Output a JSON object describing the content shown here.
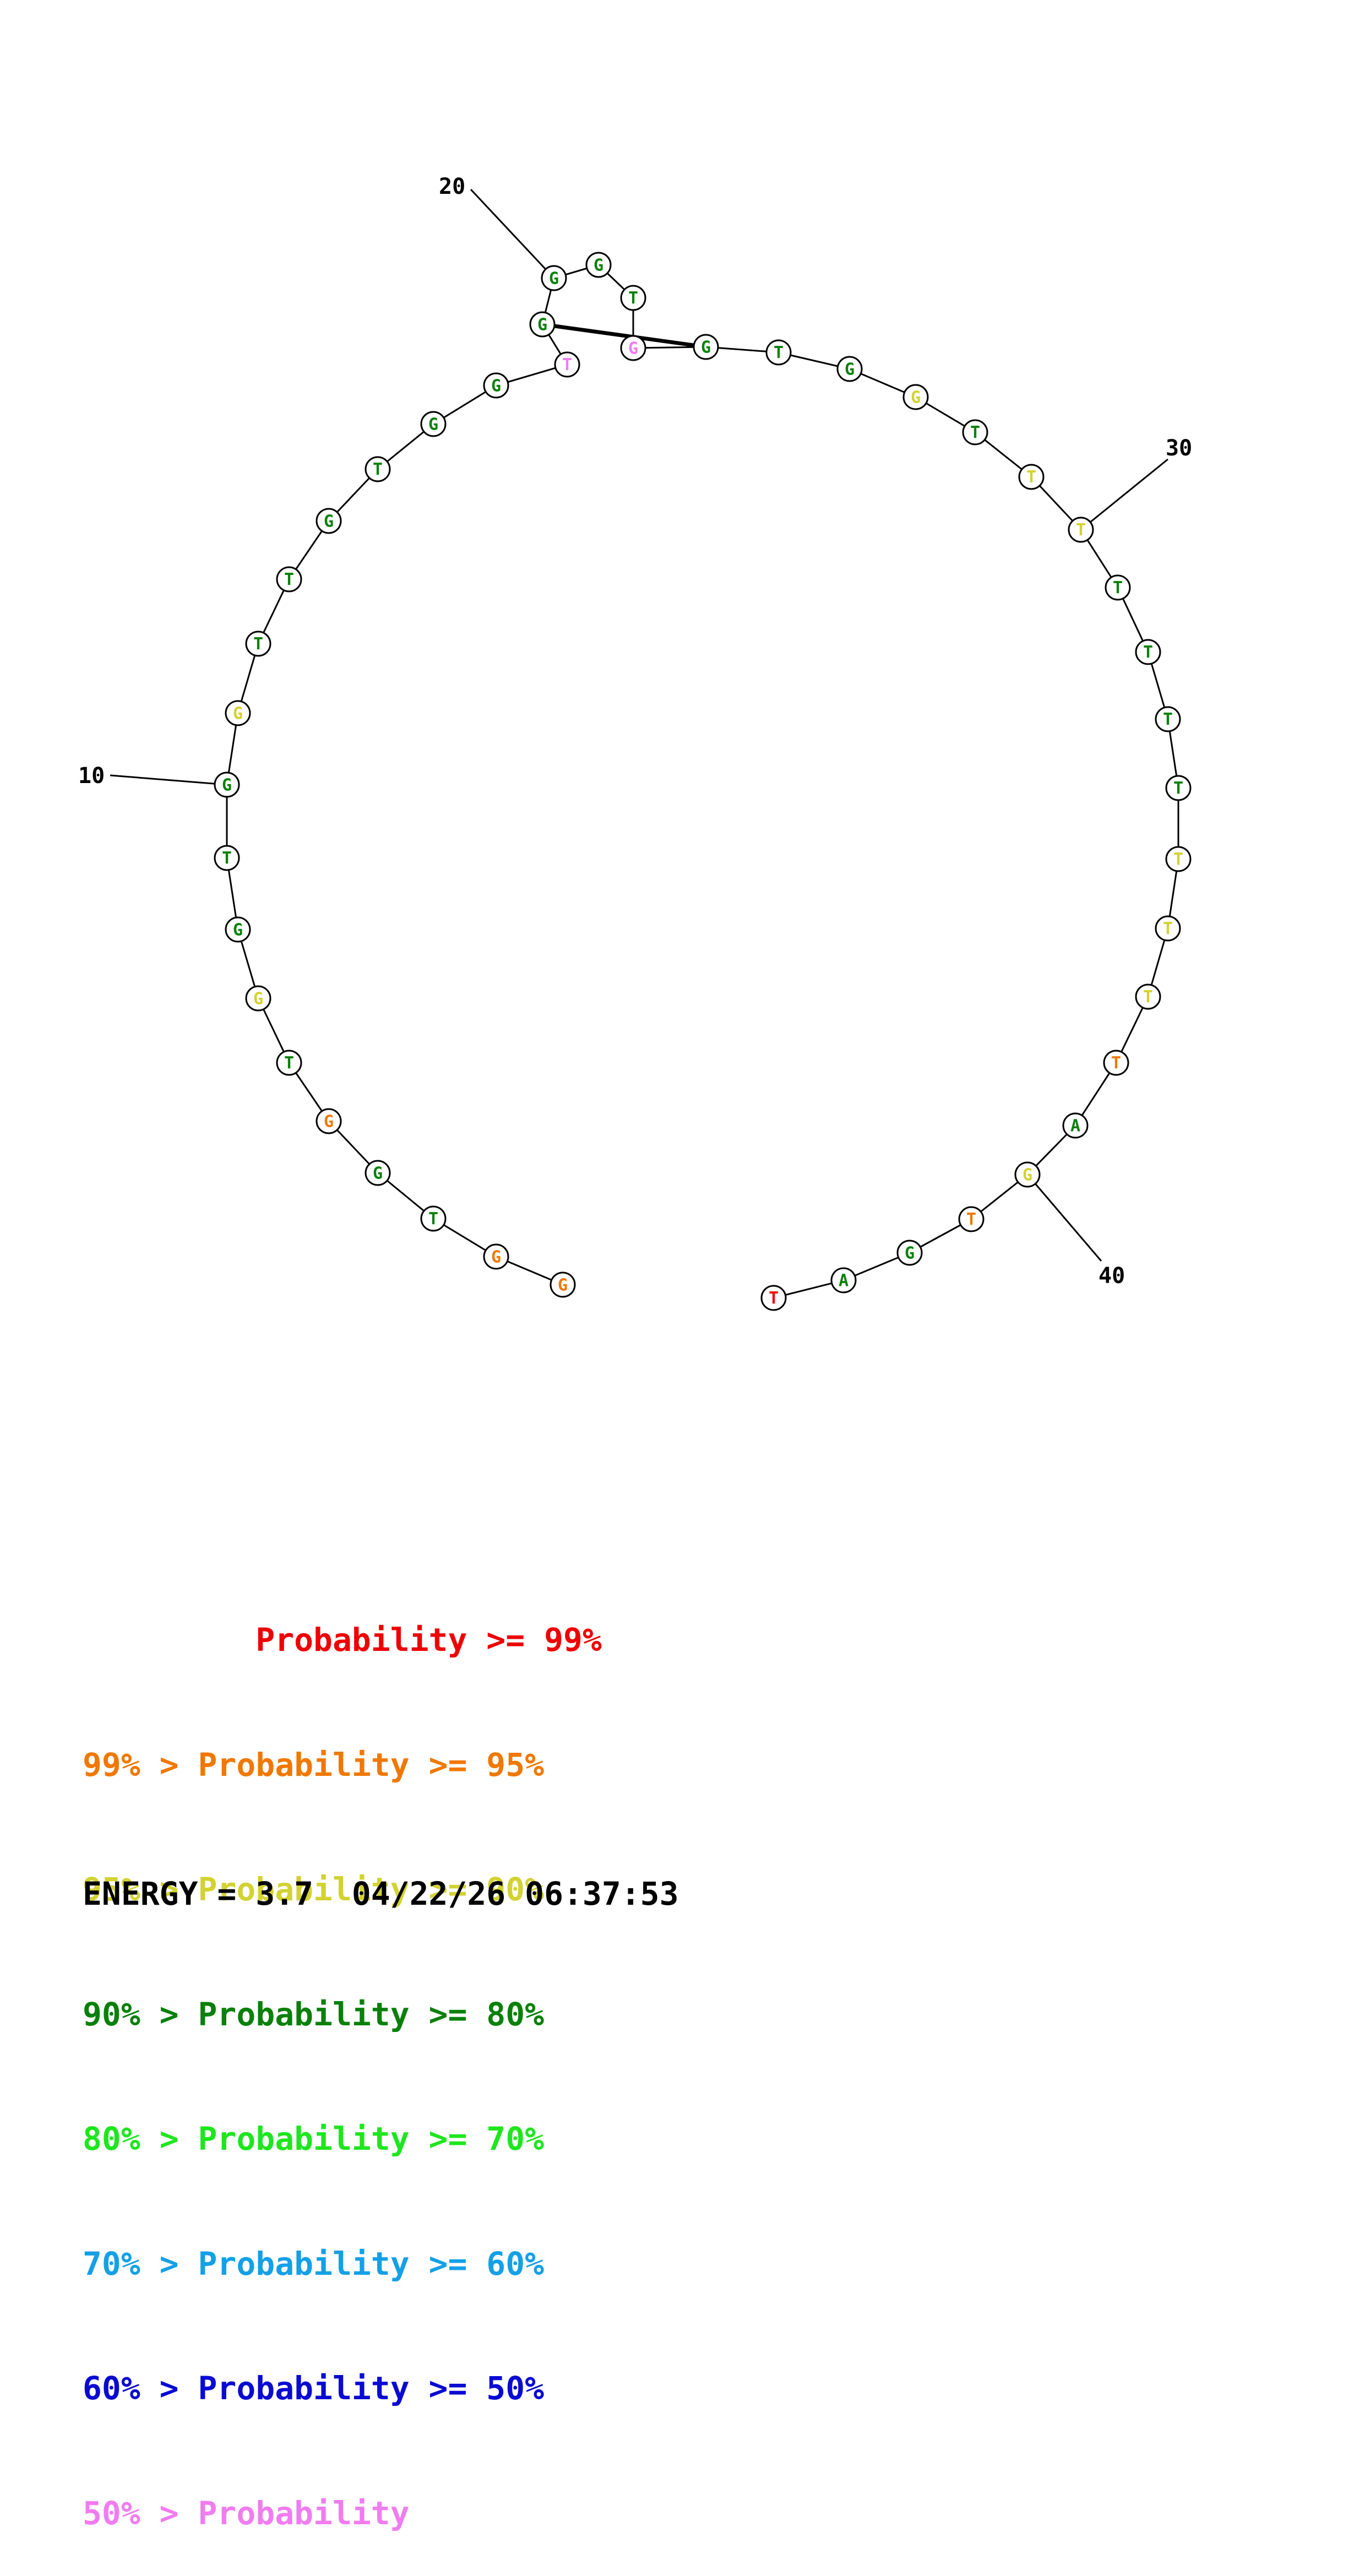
{
  "structure": {
    "sequence": [
      "G",
      "G",
      "T",
      "G",
      "G",
      "T",
      "G",
      "G",
      "T",
      "G",
      "G",
      "T",
      "T",
      "G",
      "T",
      "G",
      "G",
      "T",
      "G",
      "G",
      "G",
      "T",
      "G",
      "G",
      "T",
      "G",
      "G",
      "T",
      "T",
      "T",
      "T",
      "T",
      "T",
      "T",
      "T",
      "T",
      "T",
      "T",
      "A",
      "G",
      "T",
      "G",
      "A",
      "T"
    ],
    "colors": [
      "orange",
      "orange",
      "darkgreen",
      "darkgreen",
      "orange",
      "darkgreen",
      "yellow",
      "darkgreen",
      "darkgreen",
      "darkgreen",
      "yellow",
      "darkgreen",
      "darkgreen",
      "darkgreen",
      "darkgreen",
      "darkgreen",
      "darkgreen",
      "violet",
      "darkgreen",
      "darkgreen",
      "darkgreen",
      "darkgreen",
      "violet",
      "darkgreen",
      "darkgreen",
      "darkgreen",
      "yellow",
      "darkgreen",
      "yellow",
      "yellow",
      "darkgreen",
      "darkgreen",
      "darkgreen",
      "darkgreen",
      "yellow",
      "yellow",
      "yellow",
      "orange",
      "darkgreen",
      "yellow",
      "orange",
      "darkgreen",
      "darkgreen",
      "red"
    ],
    "pairs": [
      [
        18,
        23
      ]
    ],
    "position_labels": [
      {
        "index": 10,
        "text": "10"
      },
      {
        "index": 20,
        "text": "20"
      },
      {
        "index": 30,
        "text": "30"
      },
      {
        "index": 40,
        "text": "40"
      }
    ]
  },
  "palette": {
    "red": "#ee0000",
    "orange": "#f07800",
    "yellow": "#d2d232",
    "darkgreen": "#0a800a",
    "green": "#1ee61e",
    "cyan": "#14a0e6",
    "blue": "#0a0ad2",
    "violet": "#f07cf0"
  },
  "legend": [
    {
      "prefix": "         ",
      "text": "Probability >= 99%",
      "color": "red"
    },
    {
      "prefix": "99% > ",
      "text": "Probability >= 95%",
      "color": "orange"
    },
    {
      "prefix": "95% > ",
      "text": "Probability >= 90%",
      "color": "yellow"
    },
    {
      "prefix": "90% > ",
      "text": "Probability >= 80%",
      "color": "darkgreen"
    },
    {
      "prefix": "80% > ",
      "text": "Probability >= 70%",
      "color": "green"
    },
    {
      "prefix": "70% > ",
      "text": "Probability >= 60%",
      "color": "cyan"
    },
    {
      "prefix": "60% > ",
      "text": "Probability >= 50%",
      "color": "blue"
    },
    {
      "prefix": "50% > ",
      "text": "Probability",
      "color": "violet"
    }
  ],
  "footer": {
    "energy": "ENERGY = 3.7",
    "timestamp": "04/22/26 06:37:53"
  }
}
